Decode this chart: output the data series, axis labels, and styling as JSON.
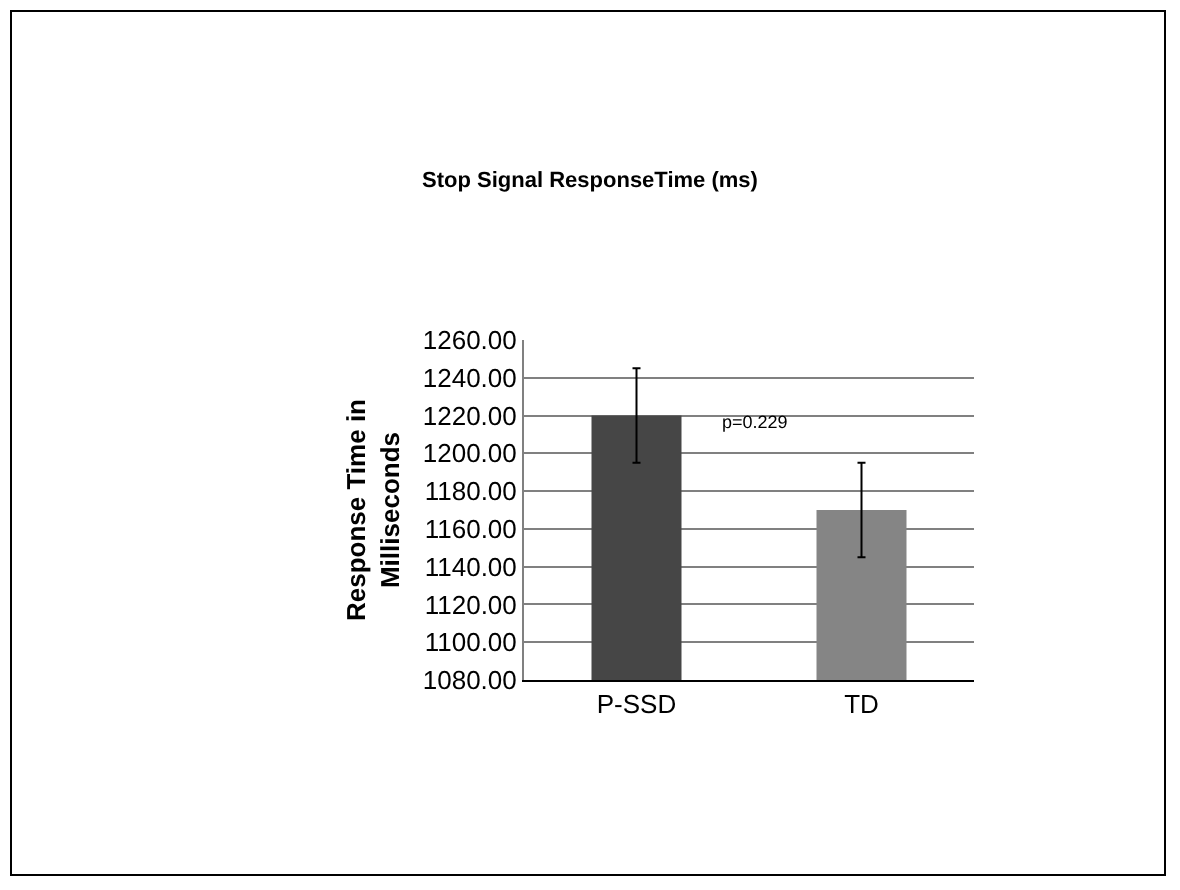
{
  "chart_data": {
    "type": "bar",
    "title": "Stop Signal ResponseTime (ms)",
    "ylabel": "Response Time in Milliseconds",
    "categories": [
      "P-SSD",
      "TD"
    ],
    "values": [
      1220,
      1170
    ],
    "colors": [
      "#464646",
      "#858585"
    ],
    "errors": [
      25,
      25
    ],
    "ylim": [
      1080,
      1260
    ],
    "yticks": [
      {
        "value": 1080,
        "label": "1080.00"
      },
      {
        "value": 1100,
        "label": "1100.00"
      },
      {
        "value": 1120,
        "label": "1120.00"
      },
      {
        "value": 1140,
        "label": "1140.00"
      },
      {
        "value": 1160,
        "label": "1160.00"
      },
      {
        "value": 1180,
        "label": "1180.00"
      },
      {
        "value": 1200,
        "label": "1200.00"
      },
      {
        "value": 1220,
        "label": "1220.00"
      },
      {
        "value": 1240,
        "label": "1240.00"
      },
      {
        "value": 1260,
        "label": "1260.00"
      }
    ],
    "grid": "y",
    "annotations": [
      "p=0.229"
    ]
  }
}
